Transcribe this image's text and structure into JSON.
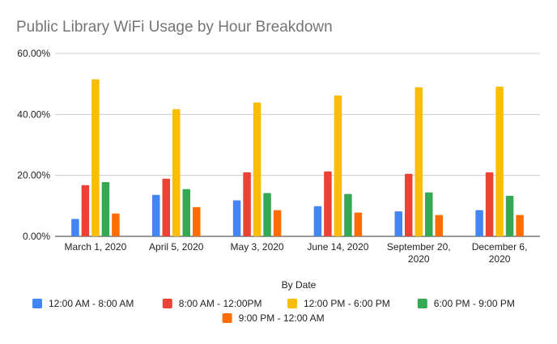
{
  "chart_data": {
    "type": "bar",
    "title": "Public Library WiFi Usage by Hour Breakdown",
    "xlabel": "By Date",
    "ylabel": "",
    "ylim": [
      0,
      60
    ],
    "yticks": [
      "0.00%",
      "20.00%",
      "40.00%",
      "60.00%"
    ],
    "grid": true,
    "legend_position": "bottom",
    "categories": [
      [
        "March 1, 2020"
      ],
      [
        "April 5, 2020"
      ],
      [
        "May 3, 2020"
      ],
      [
        "June 14, 2020"
      ],
      [
        "September 20,",
        "2020"
      ],
      [
        "December 6,",
        "2020"
      ]
    ],
    "series": [
      {
        "name": "12:00 AM - 8:00 AM",
        "color": "#4285f4",
        "values": [
          5.7,
          13.6,
          11.8,
          9.9,
          8.2,
          8.6
        ]
      },
      {
        "name": "8:00 AM - 12:00PM",
        "color": "#ea4335",
        "values": [
          16.8,
          18.9,
          21.0,
          21.3,
          20.5,
          21.0
        ]
      },
      {
        "name": "12:00 PM - 6:00 PM",
        "color": "#fbbc04",
        "values": [
          51.5,
          41.7,
          43.9,
          46.2,
          48.9,
          49.1
        ]
      },
      {
        "name": "6:00 PM - 9:00 PM",
        "color": "#34a853",
        "values": [
          17.8,
          15.5,
          14.2,
          13.9,
          14.4,
          13.3
        ]
      },
      {
        "name": "9:00 PM - 12:00 AM",
        "color": "#ff6d01",
        "values": [
          7.5,
          9.6,
          8.6,
          7.8,
          7.0,
          7.0
        ]
      }
    ]
  }
}
